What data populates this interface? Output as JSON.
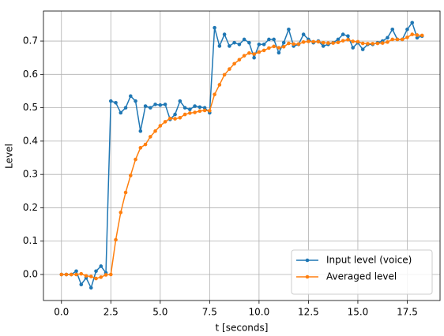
{
  "chart_data": {
    "type": "line",
    "xlabel": "t [seconds]",
    "ylabel": "Level",
    "x": [
      0,
      0.25,
      0.5,
      0.75,
      1,
      1.25,
      1.5,
      1.75,
      2,
      2.25,
      2.5,
      2.75,
      3,
      3.25,
      3.5,
      3.75,
      4,
      4.25,
      4.5,
      4.75,
      5,
      5.25,
      5.5,
      5.75,
      6,
      6.25,
      6.5,
      6.75,
      7,
      7.25,
      7.5,
      7.75,
      8,
      8.25,
      8.5,
      8.75,
      9,
      9.25,
      9.5,
      9.75,
      10,
      10.25,
      10.5,
      10.75,
      11,
      11.25,
      11.5,
      11.75,
      12,
      12.25,
      12.5,
      12.75,
      13,
      13.25,
      13.5,
      13.75,
      14,
      14.25,
      14.5,
      14.75,
      15,
      15.25,
      15.5,
      15.75,
      16,
      16.25,
      16.5,
      16.75,
      17,
      17.25,
      17.5,
      17.75,
      18,
      18.25
    ],
    "series": [
      {
        "name": "Input level (voice)",
        "color": "#1f77b4",
        "values": [
          0,
          0,
          0,
          0.01,
          -0.03,
          -0.01,
          -0.04,
          0.01,
          0.025,
          0.005,
          0.52,
          0.515,
          0.485,
          0.5,
          0.535,
          0.52,
          0.43,
          0.505,
          0.5,
          0.51,
          0.508,
          0.51,
          0.465,
          0.48,
          0.52,
          0.5,
          0.495,
          0.505,
          0.502,
          0.5,
          0.485,
          0.74,
          0.685,
          0.72,
          0.685,
          0.695,
          0.69,
          0.705,
          0.695,
          0.65,
          0.69,
          0.69,
          0.705,
          0.705,
          0.665,
          0.695,
          0.735,
          0.685,
          0.69,
          0.72,
          0.705,
          0.695,
          0.7,
          0.685,
          0.69,
          0.695,
          0.705,
          0.72,
          0.715,
          0.68,
          0.695,
          0.675,
          0.69,
          0.69,
          0.695,
          0.7,
          0.71,
          0.735,
          0.705,
          0.705,
          0.735,
          0.755,
          0.71,
          0.715
        ]
      },
      {
        "name": "Averaged level",
        "color": "#ff7f0e",
        "values": [
          0,
          0,
          0,
          0,
          0.002,
          -0.004,
          -0.006,
          -0.012,
          -0.008,
          -0.001,
          0,
          0.104,
          0.186,
          0.246,
          0.297,
          0.345,
          0.38,
          0.39,
          0.413,
          0.43,
          0.446,
          0.458,
          0.468,
          0.467,
          0.47,
          0.48,
          0.484,
          0.486,
          0.49,
          0.492,
          0.491,
          0.54,
          0.569,
          0.599,
          0.616,
          0.632,
          0.644,
          0.656,
          0.664,
          0.661,
          0.667,
          0.672,
          0.679,
          0.684,
          0.68,
          0.683,
          0.693,
          0.691,
          0.691,
          0.697,
          0.699,
          0.698,
          0.698,
          0.695,
          0.694,
          0.694,
          0.696,
          0.701,
          0.704,
          0.699,
          0.698,
          0.693,
          0.692,
          0.692,
          0.693,
          0.694,
          0.697,
          0.705,
          0.705,
          0.705,
          0.711,
          0.72,
          0.718,
          0.717
        ]
      }
    ],
    "xlim": [
      -0.91,
      19.16
    ],
    "ylim": [
      -0.078,
      0.79
    ],
    "xticks": [
      {
        "value": 0,
        "label": "0.0"
      },
      2.5,
      {
        "value": 5,
        "label": "5.0"
      },
      7.5,
      {
        "value": 10,
        "label": "10.0"
      },
      12.5,
      {
        "value": 15,
        "label": "15.0"
      },
      17.5
    ],
    "yticks": [
      {
        "value": 0,
        "label": "0.0"
      },
      0.1,
      0.2,
      0.3,
      0.4,
      0.5,
      0.6,
      0.7
    ],
    "grid": true,
    "legend": "lower right"
  }
}
